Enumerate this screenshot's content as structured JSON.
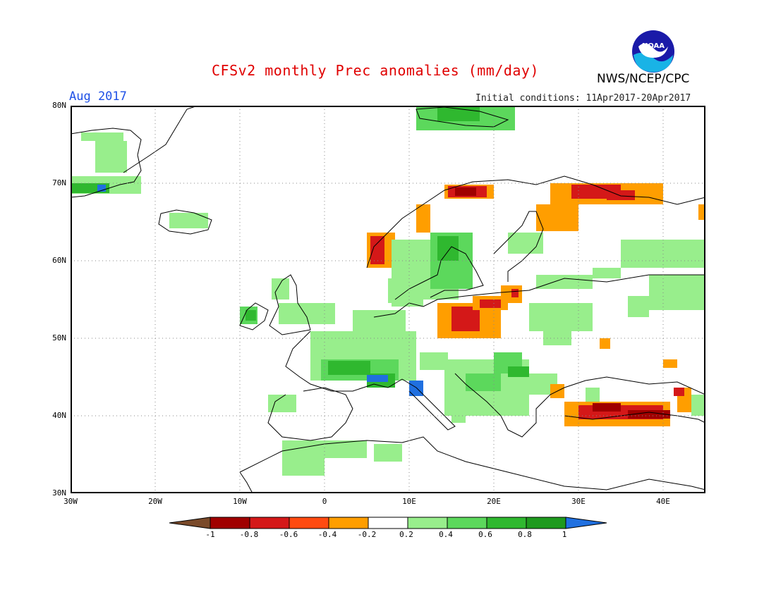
{
  "header": {
    "title": "CFSv2 monthly Prec anomalies (mm/day)",
    "agency": "NWS/NCEP/CPC",
    "period": "Aug 2017",
    "initial_conditions": "Initial conditions: 11Apr2017-20Apr2017"
  },
  "logo": {
    "text": "NOAA",
    "icon": "noaa-logo-icon"
  },
  "axes": {
    "lat_labels": [
      "80N",
      "70N",
      "60N",
      "50N",
      "40N",
      "30N"
    ],
    "lon_labels": [
      "30W",
      "20W",
      "10W",
      "0",
      "10E",
      "20E",
      "30E",
      "40E"
    ]
  },
  "colorbar": {
    "labels": [
      "-1",
      "-0.8",
      "-0.6",
      "-0.4",
      "-0.2",
      "0.2",
      "0.4",
      "0.6",
      "0.8",
      "1"
    ],
    "colors": {
      "below_min": "#7a4a2a",
      "bins": [
        "#a00000",
        "#d41818",
        "#ff4a10",
        "#ff9e00",
        "#ffffff",
        "#98ee8c",
        "#5cd85c",
        "#2fb82f",
        "#1e9a1e"
      ],
      "above_max": "#2070e0"
    }
  },
  "map": {
    "region": "Europe",
    "lon_range": [
      -30,
      45
    ],
    "lat_range": [
      30,
      80
    ],
    "grid_style": "dotted",
    "land_outline_color": "#000000"
  }
}
